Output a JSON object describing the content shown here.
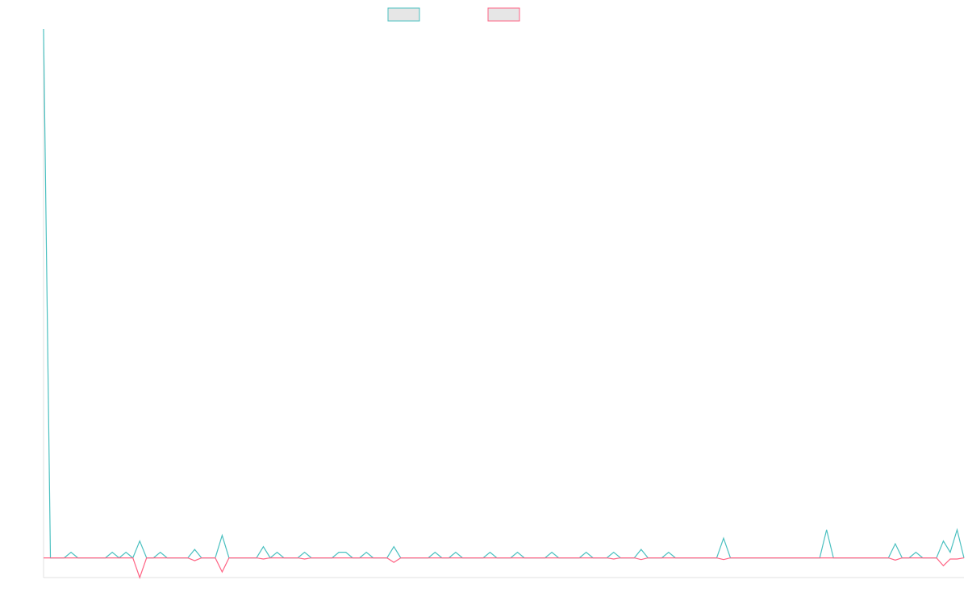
{
  "chart_data": {
    "type": "line",
    "ylim": [
      -3.5,
      94
    ],
    "series": [
      {
        "color": "#4bc0c0",
        "values": [
          94,
          0,
          0,
          0,
          1,
          0,
          0,
          0,
          0,
          0,
          1,
          0,
          1,
          0,
          3,
          0,
          0,
          1,
          0,
          0,
          0,
          0,
          1.5,
          0,
          0,
          0,
          4,
          0,
          0,
          0,
          0,
          0,
          2,
          0,
          1,
          0,
          0,
          0,
          1,
          0,
          0,
          0,
          0,
          1,
          1,
          0,
          0,
          1,
          0,
          0,
          0,
          2,
          0,
          0,
          0,
          0,
          0,
          1,
          0,
          0,
          1,
          0,
          0,
          0,
          0,
          1,
          0,
          0,
          0,
          1,
          0,
          0,
          0,
          0,
          1,
          0,
          0,
          0,
          0,
          1,
          0,
          0,
          0,
          1,
          0,
          0,
          0,
          1.5,
          0,
          0,
          0,
          1,
          0,
          0,
          0,
          0,
          0,
          0,
          0,
          3.5,
          0,
          0,
          0,
          0,
          0,
          0,
          0,
          0,
          0,
          0,
          0,
          0,
          0,
          0,
          5,
          0,
          0,
          0,
          0,
          0,
          0,
          0,
          0,
          0,
          2.5,
          0,
          0,
          1,
          0,
          0,
          0,
          3,
          1,
          5,
          0
        ]
      },
      {
        "color": "#ff6384",
        "values": [
          0,
          0,
          0,
          0,
          0,
          0,
          0,
          0,
          0,
          0,
          0,
          0,
          0,
          0,
          -3.5,
          0,
          0,
          0,
          0,
          0,
          0,
          0,
          -0.5,
          0,
          0,
          0,
          -2.5,
          0,
          0,
          0,
          0,
          0,
          -0.2,
          0,
          0,
          0,
          0,
          0,
          -0.2,
          0,
          0,
          0,
          0,
          0,
          0,
          0,
          0,
          0,
          0,
          0,
          0,
          -0.8,
          0,
          0,
          0,
          0,
          0,
          0,
          0,
          0,
          0,
          0,
          0,
          0,
          0,
          0,
          0,
          0,
          0,
          0,
          0,
          0,
          0,
          0,
          0,
          0,
          0,
          0,
          0,
          0,
          0,
          0,
          0,
          -0.2,
          0,
          0,
          0,
          -0.3,
          0,
          0,
          0,
          0,
          0,
          0,
          0,
          0,
          0,
          0,
          0,
          -0.3,
          0,
          0,
          0,
          0,
          0,
          0,
          0,
          0,
          0,
          0,
          0,
          0,
          0,
          0,
          0,
          0,
          0,
          0,
          0,
          0,
          0,
          0,
          0,
          0,
          -0.4,
          0,
          0,
          0,
          0,
          0,
          0,
          -1.4,
          -0.2,
          -0.2,
          0
        ]
      }
    ]
  }
}
